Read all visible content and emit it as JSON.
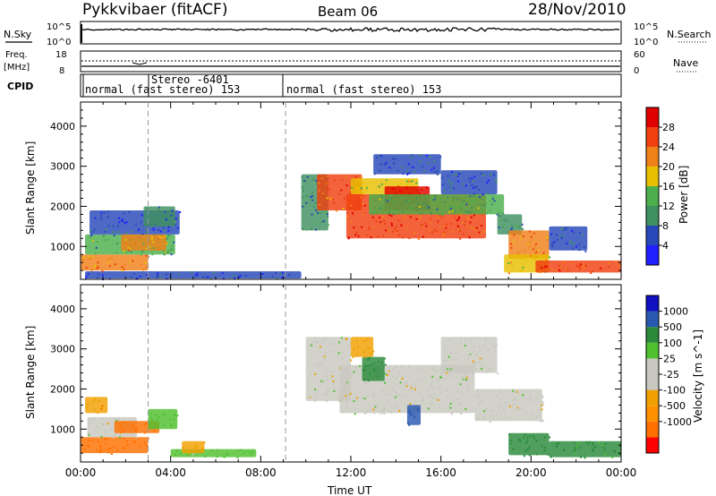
{
  "header": {
    "station": "Pykkvibaer (fitACF)",
    "beam": "Beam 06",
    "date": "28/Nov/2010"
  },
  "panels": {
    "nsky": {
      "left_label": "N.Sky",
      "right_label": "N.Search",
      "left_ticks": [
        "10^5",
        "10^0"
      ],
      "right_ticks": [
        "10^5",
        "10^0"
      ]
    },
    "freq": {
      "left_label_top": "Freq.",
      "left_label_unit": "[MHz]",
      "right_label": "Nave",
      "left_ticks": [
        "18",
        "8"
      ],
      "right_ticks": [
        "60",
        "0"
      ]
    },
    "cpid": {
      "label": "CPID",
      "entries": [
        "normal (fast stereo) 153",
        "Stereo -6401",
        "normal (fast stereo) 153"
      ]
    }
  },
  "colors": {
    "power": [
      "#1f1fff",
      "#2748b8",
      "#3f9060",
      "#4caf4c",
      "#e8c000",
      "#f08018",
      "#f04010",
      "#e00000"
    ],
    "velocity": [
      "#ff0000",
      "#ff7000",
      "#ff9000",
      "#f0a000",
      "#c8c8c0",
      "#c8c8c0",
      "#50c030",
      "#2a8a3a",
      "#2858b0",
      "#1010c0"
    ],
    "ground": "#a0a0a0"
  },
  "chart_data": [
    {
      "type": "heatmap",
      "title": "Power",
      "ylabel": "Slant Range [km]",
      "xlabel": "",
      "x_ticks": [
        "00:00",
        "04:00",
        "08:00",
        "12:00",
        "16:00",
        "20:00",
        "00:00"
      ],
      "y_ticks": [
        "1000",
        "2000",
        "3000",
        "4000"
      ],
      "ylim": [
        180,
        4600
      ],
      "xlim_hours": [
        0,
        24
      ],
      "colorbar": {
        "label": "Power [dB]",
        "ticks": [
          "4",
          "8",
          "12",
          "16",
          "20",
          "24",
          "28"
        ],
        "range": [
          0,
          32
        ]
      },
      "regions": [
        {
          "t0": 0.2,
          "t1": 9.8,
          "r0": 200,
          "r1": 380,
          "value": 4
        },
        {
          "t0": 0.0,
          "t1": 3.0,
          "r0": 400,
          "r1": 800,
          "value": 22
        },
        {
          "t0": 0.2,
          "t1": 4.2,
          "r0": 800,
          "r1": 1300,
          "value": 12
        },
        {
          "t0": 0.4,
          "t1": 4.4,
          "r0": 1300,
          "r1": 1900,
          "value": 6
        },
        {
          "t0": 1.8,
          "t1": 3.8,
          "r0": 900,
          "r1": 1300,
          "value": 20
        },
        {
          "t0": 2.8,
          "t1": 4.2,
          "r0": 1500,
          "r1": 2000,
          "value": 8
        },
        {
          "t0": 9.8,
          "t1": 11.0,
          "r0": 1400,
          "r1": 2800,
          "value": 10
        },
        {
          "t0": 10.5,
          "t1": 12.5,
          "r0": 1900,
          "r1": 2800,
          "value": 24
        },
        {
          "t0": 11.8,
          "t1": 18.0,
          "r0": 1200,
          "r1": 2300,
          "value": 26
        },
        {
          "t0": 12.0,
          "t1": 15.0,
          "r0": 2300,
          "r1": 2700,
          "value": 16
        },
        {
          "t0": 13.5,
          "t1": 15.5,
          "r0": 1900,
          "r1": 2500,
          "value": 30
        },
        {
          "t0": 12.8,
          "t1": 18.8,
          "r0": 1800,
          "r1": 2300,
          "value": 12
        },
        {
          "t0": 16.0,
          "t1": 18.5,
          "r0": 2300,
          "r1": 2900,
          "value": 6
        },
        {
          "t0": 18.5,
          "t1": 19.6,
          "r0": 1300,
          "r1": 1800,
          "value": 10
        },
        {
          "t0": 19.0,
          "t1": 20.8,
          "r0": 700,
          "r1": 1400,
          "value": 22
        },
        {
          "t0": 18.8,
          "t1": 20.8,
          "r0": 350,
          "r1": 800,
          "value": 18
        },
        {
          "t0": 20.2,
          "t1": 24.0,
          "r0": 350,
          "r1": 650,
          "value": 26
        },
        {
          "t0": 20.8,
          "t1": 22.5,
          "r0": 900,
          "r1": 1500,
          "value": 6
        },
        {
          "t0": 13.0,
          "t1": 16.0,
          "r0": 2800,
          "r1": 3300,
          "value": 6
        }
      ]
    },
    {
      "type": "heatmap",
      "title": "Velocity",
      "ylabel": "Slant Range [km]",
      "xlabel": "Time UT",
      "x_ticks": [
        "00:00",
        "04:00",
        "08:00",
        "12:00",
        "16:00",
        "20:00",
        "00:00"
      ],
      "y_ticks": [
        "1000",
        "2000",
        "3000",
        "4000"
      ],
      "ylim": [
        180,
        4600
      ],
      "xlim_hours": [
        0,
        24
      ],
      "colorbar": {
        "label": "Velocity [m s^-1]",
        "ticks": [
          "1000",
          "500",
          "100",
          "25",
          "-25",
          "-100",
          "-500",
          "-1000"
        ]
      },
      "regions": [
        {
          "t0": 0.0,
          "t1": 3.0,
          "r0": 400,
          "r1": 800,
          "value": -300
        },
        {
          "t0": 0.3,
          "t1": 2.5,
          "r0": 800,
          "r1": 1300,
          "value": 0
        },
        {
          "t0": 1.5,
          "t1": 3.5,
          "r0": 900,
          "r1": 1200,
          "value": -150
        },
        {
          "t0": 0.2,
          "t1": 1.2,
          "r0": 1400,
          "r1": 1800,
          "value": -80
        },
        {
          "t0": 3.0,
          "t1": 4.3,
          "r0": 1000,
          "r1": 1500,
          "value": 60
        },
        {
          "t0": 4.0,
          "t1": 7.8,
          "r0": 300,
          "r1": 500,
          "value": 50
        },
        {
          "t0": 4.5,
          "t1": 5.5,
          "r0": 400,
          "r1": 700,
          "value": -60
        },
        {
          "t0": 10.0,
          "t1": 12.0,
          "r0": 1700,
          "r1": 3300,
          "value": 0
        },
        {
          "t0": 11.5,
          "t1": 17.5,
          "r0": 1400,
          "r1": 2600,
          "value": 0
        },
        {
          "t0": 12.5,
          "t1": 13.5,
          "r0": 2200,
          "r1": 2800,
          "value": 300
        },
        {
          "t0": 14.5,
          "t1": 15.1,
          "r0": 1100,
          "r1": 1600,
          "value": 900
        },
        {
          "t0": 16.0,
          "t1": 18.5,
          "r0": 2400,
          "r1": 3300,
          "value": 0
        },
        {
          "t0": 17.5,
          "t1": 20.5,
          "r0": 1200,
          "r1": 2000,
          "value": 0
        },
        {
          "t0": 19.0,
          "t1": 20.8,
          "r0": 350,
          "r1": 900,
          "value": 200
        },
        {
          "t0": 20.8,
          "t1": 24.0,
          "r0": 300,
          "r1": 700,
          "value": 120
        },
        {
          "t0": 12.0,
          "t1": 13.0,
          "r0": 2800,
          "r1": 3300,
          "value": -70
        }
      ]
    }
  ]
}
